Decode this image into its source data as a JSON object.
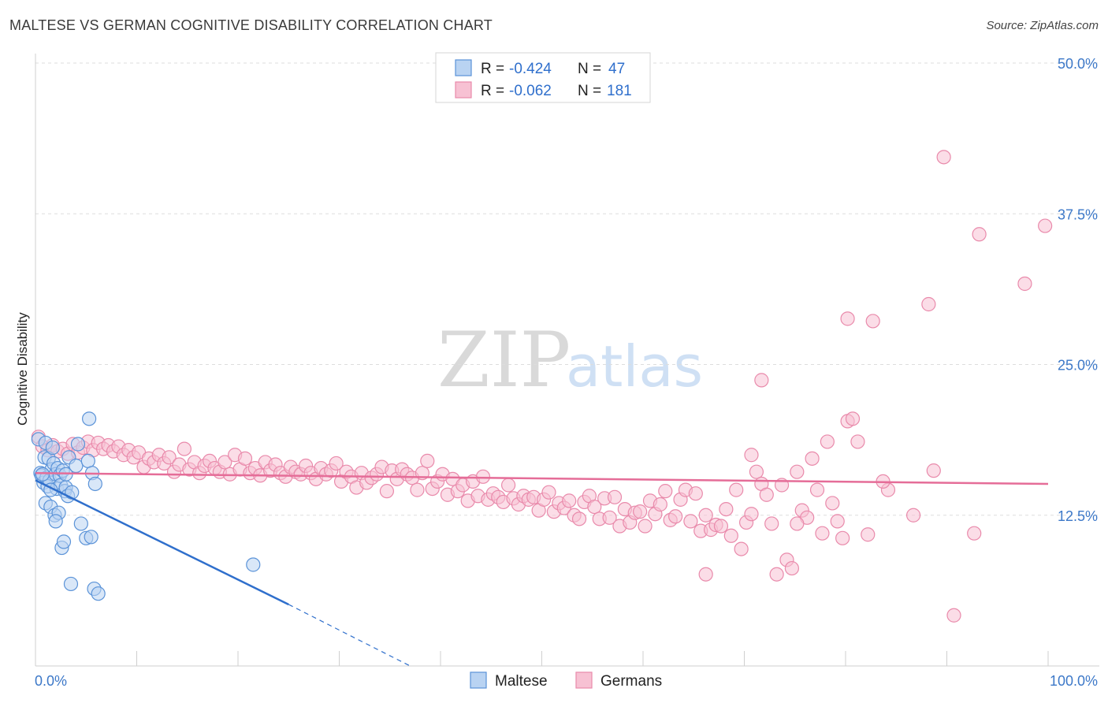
{
  "title": "MALTESE VS GERMAN COGNITIVE DISABILITY CORRELATION CHART",
  "source": "Source: ZipAtlas.com",
  "watermark": {
    "zip": "ZIP",
    "atlas": "atlas"
  },
  "colors": {
    "maltese_fill": "#b9d3f2",
    "maltese_stroke": "#5b93d8",
    "maltese_line": "#2f6fcc",
    "germans_fill": "#f7c1d3",
    "germans_stroke": "#e98aab",
    "germans_line": "#e56d98",
    "grid": "#dddddd",
    "axis_label": "#3c78c8"
  },
  "legend": {
    "r_label": "R =",
    "n_label": "N =",
    "rows": [
      {
        "r": "-0.424",
        "n": "47"
      },
      {
        "r": "-0.062",
        "n": "181"
      }
    ]
  },
  "chart_data": {
    "type": "scatter",
    "title": "MALTESE VS GERMAN COGNITIVE DISABILITY CORRELATION CHART",
    "xlabel": "",
    "ylabel": "Cognitive Disability",
    "xlim": [
      0,
      100
    ],
    "ylim": [
      0,
      50
    ],
    "x_tick_labels": [
      "0.0%",
      "100.0%"
    ],
    "y_ticks": [
      12.5,
      25.0,
      37.5,
      50.0
    ],
    "y_tick_labels": [
      "12.5%",
      "25.0%",
      "37.5%",
      "50.0%"
    ],
    "grid": true,
    "legend_position": "top-center",
    "series": [
      {
        "name": "Maltese",
        "r": -0.424,
        "n": 47,
        "trend": {
          "x": [
            0,
            25
          ],
          "y": [
            15.4,
            5.1
          ],
          "dashed_to": [
            37,
            0
          ]
        },
        "points": [
          [
            0.3,
            18.8
          ],
          [
            0.5,
            16.0
          ],
          [
            0.6,
            15.8
          ],
          [
            0.8,
            15.2
          ],
          [
            0.9,
            17.3
          ],
          [
            1.0,
            18.5
          ],
          [
            1.0,
            13.5
          ],
          [
            1.1,
            15.6
          ],
          [
            1.2,
            14.9
          ],
          [
            1.3,
            17.2
          ],
          [
            1.4,
            15.4
          ],
          [
            1.5,
            13.2
          ],
          [
            1.6,
            16.3
          ],
          [
            1.7,
            18.1
          ],
          [
            1.8,
            16.8
          ],
          [
            1.9,
            12.5
          ],
          [
            2.0,
            15.9
          ],
          [
            2.1,
            14.7
          ],
          [
            2.2,
            16.4
          ],
          [
            2.3,
            12.7
          ],
          [
            2.4,
            15.8
          ],
          [
            2.5,
            15.0
          ],
          [
            2.6,
            9.8
          ],
          [
            2.7,
            16.2
          ],
          [
            2.8,
            10.3
          ],
          [
            2.9,
            14.5
          ],
          [
            3.0,
            15.9
          ],
          [
            3.0,
            14.8
          ],
          [
            3.2,
            14.1
          ],
          [
            3.3,
            17.3
          ],
          [
            3.5,
            6.8
          ],
          [
            3.6,
            14.4
          ],
          [
            4.0,
            16.6
          ],
          [
            4.2,
            18.4
          ],
          [
            4.5,
            11.8
          ],
          [
            5.0,
            10.6
          ],
          [
            5.2,
            17.0
          ],
          [
            5.3,
            20.5
          ],
          [
            5.5,
            10.7
          ],
          [
            5.6,
            16.0
          ],
          [
            5.8,
            6.4
          ],
          [
            5.9,
            15.1
          ],
          [
            6.2,
            6.0
          ],
          [
            21.5,
            8.4
          ],
          [
            0.7,
            15.9
          ],
          [
            1.5,
            14.6
          ],
          [
            2.0,
            12.0
          ]
        ]
      },
      {
        "name": "Germans",
        "r": -0.062,
        "n": 181,
        "trend": {
          "x": [
            0,
            100
          ],
          "y": [
            16.0,
            15.1
          ]
        },
        "points": [
          [
            0.3,
            19.0
          ],
          [
            0.7,
            18.2
          ],
          [
            1.2,
            17.9
          ],
          [
            1.7,
            18.3
          ],
          [
            2.2,
            17.8
          ],
          [
            2.7,
            18.0
          ],
          [
            3.2,
            17.6
          ],
          [
            3.7,
            18.4
          ],
          [
            4.2,
            17.7
          ],
          [
            4.7,
            18.1
          ],
          [
            5.2,
            18.6
          ],
          [
            5.7,
            17.9
          ],
          [
            6.2,
            18.5
          ],
          [
            6.7,
            18.0
          ],
          [
            7.2,
            18.3
          ],
          [
            7.7,
            17.8
          ],
          [
            8.2,
            18.2
          ],
          [
            8.7,
            17.5
          ],
          [
            9.2,
            17.9
          ],
          [
            9.7,
            17.3
          ],
          [
            10.2,
            17.7
          ],
          [
            10.7,
            16.5
          ],
          [
            11.2,
            17.2
          ],
          [
            11.7,
            16.9
          ],
          [
            12.2,
            17.5
          ],
          [
            12.7,
            16.8
          ],
          [
            13.2,
            17.3
          ],
          [
            13.7,
            16.1
          ],
          [
            14.2,
            16.7
          ],
          [
            14.7,
            18.0
          ],
          [
            15.2,
            16.3
          ],
          [
            15.7,
            16.9
          ],
          [
            16.2,
            16.0
          ],
          [
            16.7,
            16.6
          ],
          [
            17.2,
            17.0
          ],
          [
            17.7,
            16.4
          ],
          [
            18.2,
            16.1
          ],
          [
            18.7,
            16.9
          ],
          [
            19.2,
            15.9
          ],
          [
            19.7,
            17.5
          ],
          [
            20.2,
            16.3
          ],
          [
            20.7,
            17.2
          ],
          [
            21.2,
            16.0
          ],
          [
            21.7,
            16.4
          ],
          [
            22.2,
            15.8
          ],
          [
            22.7,
            16.9
          ],
          [
            23.2,
            16.2
          ],
          [
            23.7,
            16.7
          ],
          [
            24.2,
            16.0
          ],
          [
            24.7,
            15.7
          ],
          [
            25.2,
            16.5
          ],
          [
            25.7,
            16.1
          ],
          [
            26.2,
            15.9
          ],
          [
            26.7,
            16.6
          ],
          [
            27.2,
            16.0
          ],
          [
            27.7,
            15.5
          ],
          [
            28.2,
            16.4
          ],
          [
            28.7,
            15.9
          ],
          [
            29.2,
            16.2
          ],
          [
            29.7,
            16.8
          ],
          [
            30.2,
            15.3
          ],
          [
            30.7,
            16.1
          ],
          [
            31.2,
            15.7
          ],
          [
            31.7,
            14.8
          ],
          [
            32.2,
            16.0
          ],
          [
            32.7,
            15.2
          ],
          [
            33.2,
            15.6
          ],
          [
            33.7,
            15.9
          ],
          [
            34.2,
            16.5
          ],
          [
            34.7,
            14.5
          ],
          [
            35.2,
            16.2
          ],
          [
            35.7,
            15.5
          ],
          [
            36.2,
            16.3
          ],
          [
            36.7,
            15.9
          ],
          [
            37.2,
            15.6
          ],
          [
            37.7,
            14.6
          ],
          [
            38.2,
            16.0
          ],
          [
            38.7,
            17.0
          ],
          [
            39.2,
            14.7
          ],
          [
            39.7,
            15.3
          ],
          [
            40.2,
            15.9
          ],
          [
            40.7,
            14.2
          ],
          [
            41.2,
            15.5
          ],
          [
            41.7,
            14.5
          ],
          [
            42.2,
            15.0
          ],
          [
            42.7,
            13.7
          ],
          [
            43.2,
            15.3
          ],
          [
            43.7,
            14.1
          ],
          [
            44.2,
            15.7
          ],
          [
            44.7,
            13.8
          ],
          [
            45.2,
            14.3
          ],
          [
            45.7,
            14.0
          ],
          [
            46.2,
            13.6
          ],
          [
            46.7,
            15.0
          ],
          [
            47.2,
            13.9
          ],
          [
            47.7,
            13.4
          ],
          [
            48.2,
            14.1
          ],
          [
            48.7,
            13.8
          ],
          [
            49.2,
            14.0
          ],
          [
            49.7,
            12.9
          ],
          [
            50.2,
            13.8
          ],
          [
            50.7,
            14.4
          ],
          [
            51.2,
            12.8
          ],
          [
            51.7,
            13.5
          ],
          [
            52.2,
            13.1
          ],
          [
            52.7,
            13.7
          ],
          [
            53.2,
            12.5
          ],
          [
            53.7,
            12.2
          ],
          [
            54.2,
            13.6
          ],
          [
            54.7,
            14.1
          ],
          [
            55.2,
            13.2
          ],
          [
            55.7,
            12.2
          ],
          [
            56.2,
            13.9
          ],
          [
            56.7,
            12.3
          ],
          [
            57.2,
            14.0
          ],
          [
            57.7,
            11.6
          ],
          [
            58.2,
            13.0
          ],
          [
            58.7,
            11.9
          ],
          [
            59.2,
            12.7
          ],
          [
            59.7,
            12.8
          ],
          [
            60.2,
            11.6
          ],
          [
            60.7,
            13.7
          ],
          [
            61.2,
            12.6
          ],
          [
            61.7,
            13.4
          ],
          [
            62.2,
            14.5
          ],
          [
            62.7,
            12.1
          ],
          [
            63.2,
            12.4
          ],
          [
            63.7,
            13.8
          ],
          [
            64.2,
            14.6
          ],
          [
            64.7,
            12.0
          ],
          [
            65.2,
            14.3
          ],
          [
            65.7,
            11.2
          ],
          [
            66.2,
            12.5
          ],
          [
            66.7,
            11.3
          ],
          [
            67.2,
            11.7
          ],
          [
            67.7,
            11.6
          ],
          [
            68.2,
            13.0
          ],
          [
            68.7,
            10.8
          ],
          [
            69.2,
            14.6
          ],
          [
            69.7,
            9.7
          ],
          [
            70.2,
            11.9
          ],
          [
            70.7,
            12.6
          ],
          [
            71.2,
            16.1
          ],
          [
            71.7,
            15.1
          ],
          [
            72.2,
            14.2
          ],
          [
            72.7,
            11.8
          ],
          [
            73.2,
            7.6
          ],
          [
            73.7,
            15.0
          ],
          [
            74.2,
            8.8
          ],
          [
            74.7,
            8.1
          ],
          [
            75.2,
            16.1
          ],
          [
            75.7,
            12.9
          ],
          [
            76.2,
            12.3
          ],
          [
            76.7,
            17.2
          ],
          [
            77.2,
            14.6
          ],
          [
            77.7,
            11.0
          ],
          [
            78.2,
            18.6
          ],
          [
            78.7,
            13.5
          ],
          [
            79.7,
            10.6
          ],
          [
            80.2,
            20.3
          ],
          [
            80.7,
            20.5
          ],
          [
            81.2,
            18.6
          ],
          [
            82.2,
            10.9
          ],
          [
            84.2,
            14.6
          ],
          [
            70.7,
            17.5
          ],
          [
            71.7,
            23.7
          ],
          [
            80.2,
            28.8
          ],
          [
            82.7,
            28.6
          ],
          [
            88.2,
            30.0
          ],
          [
            89.7,
            42.2
          ],
          [
            93.2,
            35.8
          ],
          [
            97.7,
            31.7
          ],
          [
            99.7,
            36.5
          ],
          [
            90.7,
            4.2
          ],
          [
            92.7,
            11.0
          ],
          [
            66.2,
            7.6
          ],
          [
            86.7,
            12.5
          ],
          [
            88.7,
            16.2
          ],
          [
            79.2,
            12.0
          ],
          [
            75.2,
            11.8
          ],
          [
            83.7,
            15.3
          ]
        ]
      }
    ]
  }
}
